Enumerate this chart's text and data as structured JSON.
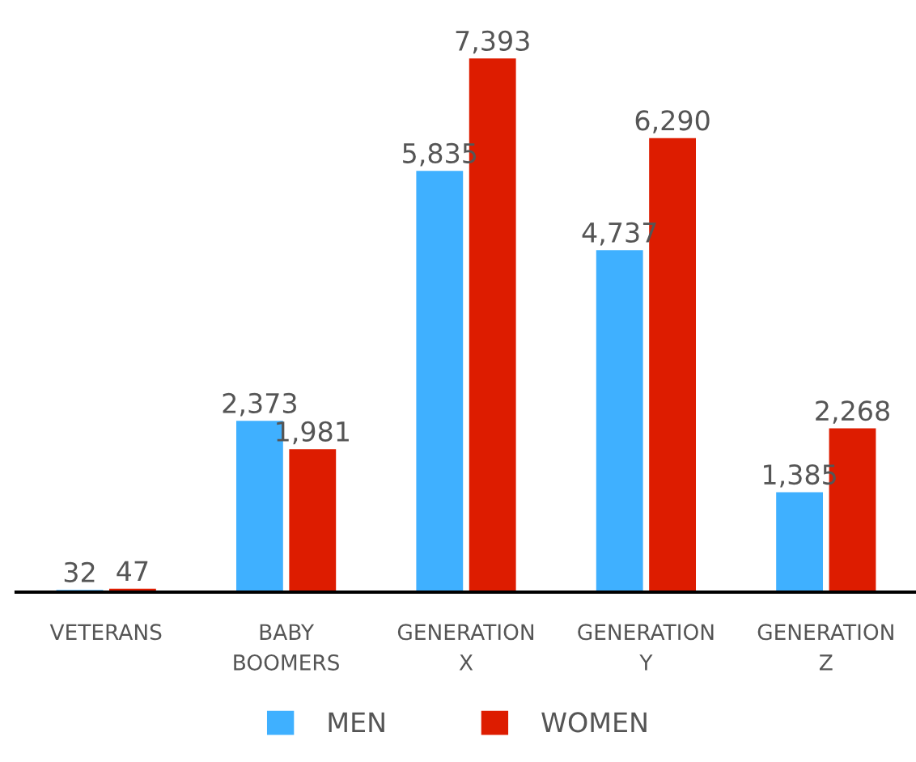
{
  "chart_data": {
    "type": "bar",
    "categories": [
      "VETERANS",
      "BABY\nBOOMERS",
      "GENERATION\nX",
      "GENERATION\nY",
      "GENERATION\nZ"
    ],
    "series": [
      {
        "name": "MEN",
        "color": "#3fb0ff",
        "values": [
          32,
          2373,
          5835,
          4737,
          1385
        ],
        "value_labels": [
          "32",
          "2,373",
          "5,835",
          "4,737",
          "1,385"
        ]
      },
      {
        "name": "WOMEN",
        "color": "#dd1c00",
        "values": [
          47,
          1981,
          7393,
          6290,
          2268
        ],
        "value_labels": [
          "47",
          "1,981",
          "7,393",
          "6,290",
          "2,268"
        ]
      }
    ],
    "legend": "bottom",
    "grid": false
  }
}
